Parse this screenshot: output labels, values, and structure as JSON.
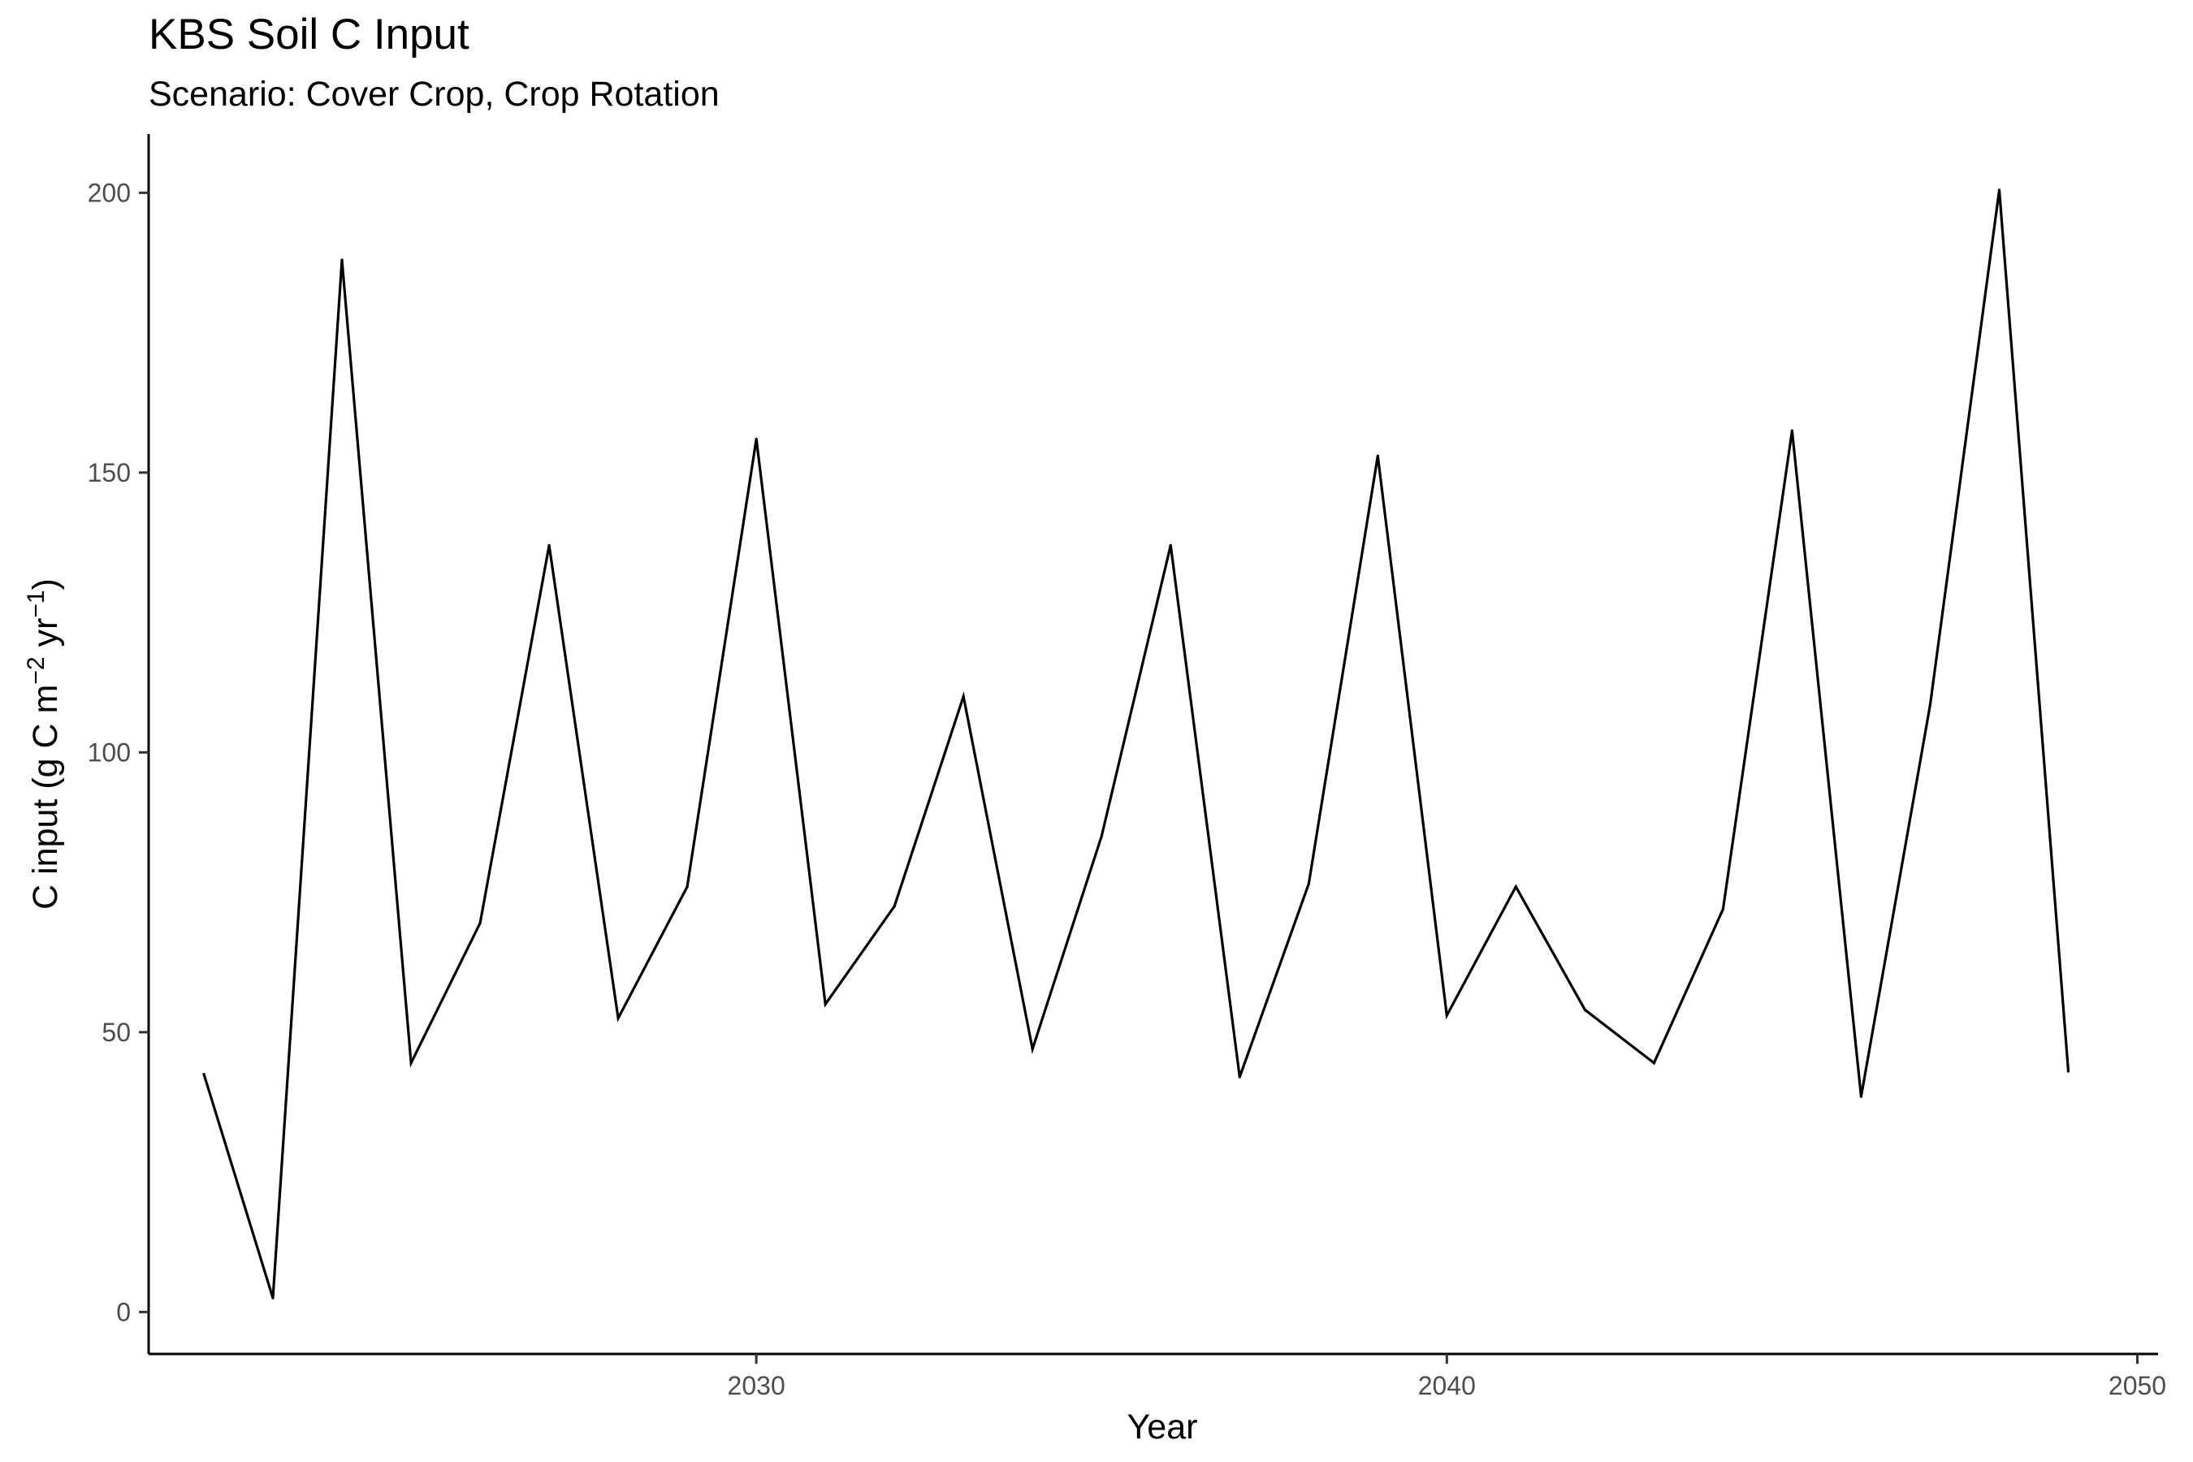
{
  "chart_data": {
    "type": "line",
    "title": "KBS Soil C Input",
    "subtitle": "Scenario: Cover Crop, Crop Rotation",
    "xlabel": "Year",
    "ylabel": {
      "prefix": "C input (g C m",
      "sup1": "−2",
      "middle": " yr",
      "sup2": "−1",
      "suffix": ")"
    },
    "xlim": [
      2021.2,
      2050.3
    ],
    "ylim": [
      -7.5,
      210.5
    ],
    "x_ticks": [
      2030,
      2040,
      2050
    ],
    "y_ticks": [
      0,
      50,
      100,
      150,
      200
    ],
    "grid": false,
    "legend": "none",
    "line_color": "#000000",
    "series": [
      {
        "x": [
          2022,
          2023,
          2024,
          2025,
          2026,
          2027,
          2028,
          2029,
          2030,
          2031,
          2032,
          2033,
          2034,
          2035,
          2036,
          2037,
          2038,
          2039,
          2040,
          2041,
          2042,
          2043,
          2044,
          2045,
          2046,
          2047,
          2048,
          2049
        ],
        "y": [
          42.5,
          2.5,
          188,
          44.5,
          69.5,
          137,
          52.5,
          76,
          156,
          55,
          72.5,
          110,
          47,
          85,
          137,
          42,
          76.5,
          153,
          53,
          76,
          54,
          44.5,
          72,
          157.5,
          38.5,
          108.5,
          200.5,
          43
        ]
      }
    ]
  }
}
